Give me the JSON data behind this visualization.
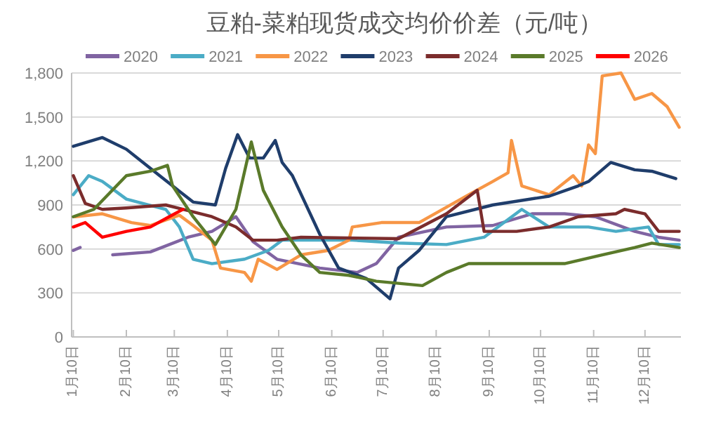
{
  "chart_data": {
    "type": "line",
    "title": "豆粕-菜粕现货成交均价价差（元/吨）",
    "xlim": [
      "--01-09",
      "--12-31"
    ],
    "xticks": [
      {
        "value": "--01-10",
        "label": "1月10日"
      },
      {
        "value": "--02-10",
        "label": "2月10日"
      },
      {
        "value": "--03-10",
        "label": "3月10日"
      },
      {
        "value": "--04-10",
        "label": "4月10日"
      },
      {
        "value": "--05-10",
        "label": "5月10日"
      },
      {
        "value": "--06-10",
        "label": "6月10日"
      },
      {
        "value": "--07-10",
        "label": "7月10日"
      },
      {
        "value": "--08-10",
        "label": "8月10日"
      },
      {
        "value": "--09-10",
        "label": "9月10日"
      },
      {
        "value": "--10-10",
        "label": "10月10日"
      },
      {
        "value": "--11-10",
        "label": "11月10日"
      },
      {
        "value": "--12-10",
        "label": "12月10日"
      }
    ],
    "ylim": [
      0,
      1800
    ],
    "yticks": [
      0,
      300,
      600,
      900,
      {
        "value": 1200,
        "label": "1,200"
      },
      {
        "value": 1500,
        "label": "1,500"
      },
      {
        "value": 1800,
        "label": "1,800"
      }
    ],
    "grid": "y",
    "legend": "top",
    "marker": "none",
    "line_style": "solid",
    "series": [
      {
        "name": "2020",
        "color": "#8064a2",
        "x": [
          "--01-10",
          "--01-14",
          "--01-24",
          "--02-02",
          "--02-24",
          "--03-18",
          "--04-01",
          "--04-15",
          "--04-25",
          "--05-09",
          "--06-03",
          "--06-25",
          "--07-06",
          "--07-19",
          "--08-16",
          "--09-12",
          "--10-05",
          "--10-24",
          "--11-11",
          "--12-04",
          "--12-18",
          "--12-30"
        ],
        "values": [
          590,
          610,
          null,
          560,
          580,
          680,
          720,
          820,
          650,
          530,
          470,
          440,
          500,
          680,
          750,
          760,
          840,
          840,
          820,
          720,
          680,
          660
        ]
      },
      {
        "name": "2021",
        "color": "#4bacc6",
        "x": [
          "--01-10",
          "--01-19",
          "--01-27",
          "--02-10",
          "--03-05",
          "--03-13",
          "--03-21",
          "--04-01",
          "--04-20",
          "--05-04",
          "--05-12",
          "--06-22",
          "--07-19",
          "--08-16",
          "--09-07",
          "--09-29",
          "--10-15",
          "--11-07",
          "--11-23",
          "--12-12",
          "--12-18",
          "--12-30"
        ],
        "values": [
          970,
          1100,
          1060,
          940,
          870,
          750,
          530,
          500,
          530,
          590,
          660,
          660,
          640,
          630,
          680,
          870,
          750,
          750,
          720,
          750,
          630,
          630
        ]
      },
      {
        "name": "2022",
        "color": "#f79646",
        "x": [
          "--01-11",
          "--01-27",
          "--02-13",
          "--02-24",
          "--03-13",
          "--03-21",
          "--04-01",
          "--04-06",
          "--04-20",
          "--04-24",
          "--04-28",
          "--05-09",
          "--05-23",
          "--06-08",
          "--06-20",
          "--06-22",
          "--07-09",
          "--07-31",
          "--08-29",
          "--09-12",
          "--09-21",
          "--09-23",
          "--09-29",
          "--10-15",
          "--10-29",
          "--11-03",
          "--11-07",
          "--11-11",
          "--11-15",
          "--11-26",
          "--12-04",
          "--12-14",
          "--12-23",
          "--12-30"
        ],
        "values": [
          820,
          840,
          780,
          760,
          830,
          760,
          660,
          470,
          440,
          380,
          530,
          460,
          560,
          590,
          660,
          750,
          780,
          780,
          970,
          1060,
          1120,
          1340,
          1030,
          970,
          1100,
          1030,
          1310,
          1250,
          1780,
          1800,
          1620,
          1660,
          1570,
          1430
        ]
      },
      {
        "name": "2023",
        "color": "#1f3d6b",
        "x": [
          "--01-10",
          "--01-27",
          "--02-10",
          "--02-24",
          "--03-09",
          "--03-21",
          "--04-03",
          "--04-09",
          "--04-16",
          "--04-23",
          "--05-01",
          "--05-08",
          "--05-12",
          "--05-18",
          "--06-03",
          "--06-14",
          "--06-30",
          "--07-14",
          "--07-19",
          "--07-31",
          "--08-16",
          "--09-12",
          "--10-15",
          "--11-01",
          "--11-07",
          "--11-20",
          "--12-04",
          "--12-14",
          "--12-28"
        ],
        "values": [
          1300,
          1360,
          1280,
          1150,
          1030,
          920,
          900,
          1150,
          1380,
          1220,
          1220,
          1340,
          1190,
          1100,
          700,
          470,
          400,
          260,
          470,
          590,
          820,
          900,
          960,
          1030,
          1060,
          1190,
          1140,
          1130,
          1080
        ]
      },
      {
        "name": "2024",
        "color": "#7b2c2c",
        "x": [
          "--01-10",
          "--01-17",
          "--01-27",
          "--02-10",
          "--03-05",
          "--04-01",
          "--04-15",
          "--04-25",
          "--05-09",
          "--05-23",
          "--07-19",
          "--08-16",
          "--09-03",
          "--09-07",
          "--09-26",
          "--10-15",
          "--11-01",
          "--11-23",
          "--11-28",
          "--12-10",
          "--12-18",
          "--12-30"
        ],
        "values": [
          1100,
          910,
          870,
          880,
          900,
          820,
          750,
          660,
          660,
          680,
          670,
          840,
          1000,
          720,
          720,
          750,
          820,
          840,
          870,
          840,
          720,
          720
        ]
      },
      {
        "name": "2025",
        "color": "#5a7a2a",
        "x": [
          "--01-10",
          "--01-22",
          "--02-10",
          "--02-24",
          "--03-06",
          "--03-09",
          "--03-21",
          "--04-03",
          "--04-15",
          "--04-24",
          "--05-01",
          "--05-12",
          "--05-23",
          "--06-03",
          "--06-20",
          "--07-06",
          "--08-02",
          "--08-16",
          "--08-29",
          "--09-26",
          "--10-24",
          "--11-15",
          "--12-04",
          "--12-14",
          "--12-30"
        ],
        "values": [
          820,
          870,
          1100,
          1130,
          1170,
          1030,
          820,
          630,
          870,
          1330,
          1000,
          750,
          560,
          440,
          420,
          380,
          350,
          440,
          500,
          500,
          500,
          560,
          610,
          640,
          610
        ]
      },
      {
        "name": "2026",
        "color": "#ff0000",
        "x": [
          "--01-10",
          "--01-17",
          "--01-27",
          "--02-10",
          "--02-24",
          "--03-07",
          "--03-15"
        ],
        "values": [
          750,
          780,
          680,
          720,
          750,
          820,
          870
        ]
      }
    ]
  }
}
